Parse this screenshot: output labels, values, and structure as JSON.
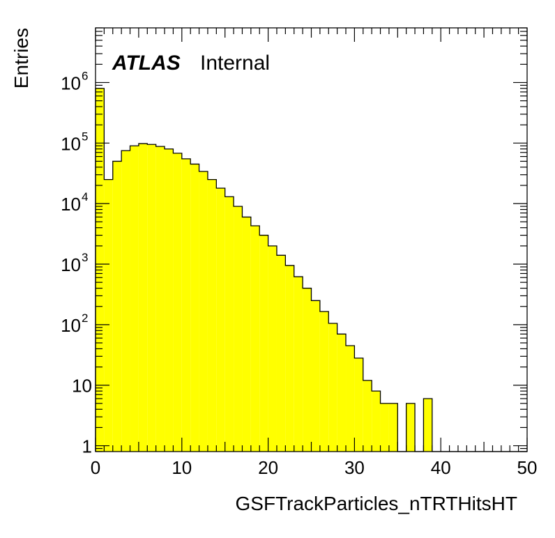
{
  "chart_data": {
    "type": "bar",
    "histogram": true,
    "fill_color": "#ffff00",
    "line_color": "#000000",
    "xlabel": "GSFTrackParticles_nTRTHitsHT",
    "ylabel": "Entries",
    "xlim": [
      0,
      50
    ],
    "ylim": [
      0.8,
      8000000
    ],
    "log_y": true,
    "bin_width": 1,
    "x_ticks": [
      "0",
      "10",
      "20",
      "30",
      "40",
      "50"
    ],
    "y_ticks": [
      {
        "base": "1",
        "exp": ""
      },
      {
        "base": "10",
        "exp": ""
      },
      {
        "base": "10",
        "exp": "2"
      },
      {
        "base": "10",
        "exp": "3"
      },
      {
        "base": "10",
        "exp": "4"
      },
      {
        "base": "10",
        "exp": "5"
      },
      {
        "base": "10",
        "exp": "6"
      }
    ],
    "bins_low_edge": [
      0,
      1,
      2,
      3,
      4,
      5,
      6,
      7,
      8,
      9,
      10,
      11,
      12,
      13,
      14,
      15,
      16,
      17,
      18,
      19,
      20,
      21,
      22,
      23,
      24,
      25,
      26,
      27,
      28,
      29,
      30,
      31,
      32,
      33,
      34,
      35,
      36,
      37,
      38,
      39,
      40,
      41,
      42,
      43,
      44,
      45,
      46,
      47,
      48,
      49
    ],
    "values": [
      800000,
      25000,
      50000,
      75000,
      90000,
      98000,
      95000,
      88000,
      80000,
      68000,
      55000,
      45000,
      34000,
      25000,
      18000,
      13000,
      9000,
      6000,
      4300,
      3000,
      2000,
      1400,
      950,
      620,
      400,
      250,
      165,
      105,
      70,
      45,
      28,
      12,
      8,
      5,
      5,
      0,
      5,
      0,
      6,
      0,
      0,
      0,
      0,
      0,
      0,
      0,
      0,
      0,
      0,
      0
    ],
    "legend": "none",
    "grid": false
  },
  "annotation": {
    "experiment": "ATLAS",
    "status": "Internal"
  }
}
